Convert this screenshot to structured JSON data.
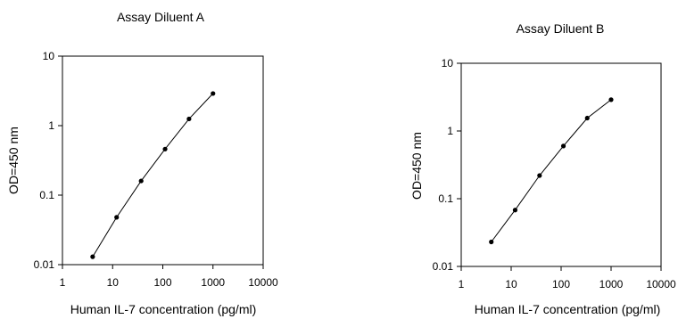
{
  "chart_data": [
    {
      "type": "line",
      "title": "Assay Diluent A",
      "xlabel": "Human IL-7 concentration (pg/ml)",
      "ylabel": "OD=450 nm",
      "xscale": "log",
      "yscale": "log",
      "xlim": [
        1,
        10000
      ],
      "ylim": [
        0.01,
        10
      ],
      "xticks": [
        "1",
        "10",
        "100",
        "1000",
        "10000"
      ],
      "yticks": [
        "0.01",
        "0.1",
        "1",
        "10"
      ],
      "grid": false,
      "series": [
        {
          "x": [
            4,
            12,
            37,
            111,
            333,
            1000
          ],
          "y": [
            0.013,
            0.048,
            0.16,
            0.46,
            1.25,
            2.9
          ]
        }
      ]
    },
    {
      "type": "line",
      "title": "Assay Diluent B",
      "xlabel": "Human IL-7 concentration (pg/ml)",
      "ylabel": "OD=450 nm",
      "xscale": "log",
      "yscale": "log",
      "xlim": [
        1,
        10000
      ],
      "ylim": [
        0.01,
        10
      ],
      "xticks": [
        "1",
        "10",
        "100",
        "1000",
        "10000"
      ],
      "yticks": [
        "0.01",
        "0.1",
        "1",
        "10"
      ],
      "grid": false,
      "series": [
        {
          "x": [
            4,
            12,
            37,
            111,
            333,
            1000
          ],
          "y": [
            0.023,
            0.068,
            0.22,
            0.6,
            1.55,
            2.9
          ]
        }
      ]
    }
  ]
}
